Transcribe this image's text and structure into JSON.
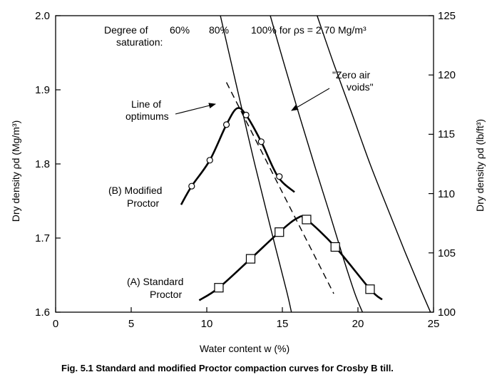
{
  "chart_data": {
    "type": "line",
    "title": "",
    "xlabel": "Water content w (%)",
    "ylabel": "Dry density ρd (Mg/m³)",
    "ylabel_right": "Dry density ρd (lb/ft³)",
    "xlim": [
      0,
      25
    ],
    "ylim": [
      1.6,
      2.0
    ],
    "ylim_right": [
      100,
      125
    ],
    "x_ticks": [
      "0",
      "5",
      "10",
      "15",
      "20",
      "25"
    ],
    "y_ticks": [
      "1.6",
      "1.7",
      "1.8",
      "1.9",
      "2.0"
    ],
    "y_right_ticks": [
      "100",
      "105",
      "110",
      "115",
      "120",
      "125"
    ],
    "grid": false,
    "series": [
      {
        "name": "(B) Modified Proctor",
        "marker": "circle",
        "curve": [
          [
            8.3,
            1.745
          ],
          [
            9.0,
            1.77
          ],
          [
            10.2,
            1.805
          ],
          [
            11.3,
            1.853
          ],
          [
            12.0,
            1.875
          ],
          [
            12.6,
            1.866
          ],
          [
            13.6,
            1.83
          ],
          [
            14.7,
            1.783
          ],
          [
            15.8,
            1.762
          ]
        ],
        "points": [
          [
            9.0,
            1.77
          ],
          [
            10.2,
            1.805
          ],
          [
            11.3,
            1.853
          ],
          [
            12.6,
            1.866
          ],
          [
            13.6,
            1.83
          ],
          [
            14.8,
            1.783
          ]
        ]
      },
      {
        "name": "(A) Standard Proctor",
        "marker": "square",
        "curve": [
          [
            9.5,
            1.616
          ],
          [
            10.8,
            1.633
          ],
          [
            12.9,
            1.672
          ],
          [
            14.8,
            1.708
          ],
          [
            16.0,
            1.727
          ],
          [
            16.6,
            1.725
          ],
          [
            18.5,
            1.688
          ],
          [
            20.8,
            1.631
          ],
          [
            21.6,
            1.617
          ]
        ],
        "points": [
          [
            10.8,
            1.633
          ],
          [
            12.9,
            1.672
          ],
          [
            14.8,
            1.708
          ],
          [
            16.6,
            1.725
          ],
          [
            18.5,
            1.688
          ],
          [
            20.8,
            1.631
          ]
        ]
      },
      {
        "name": "60%",
        "style": "saturation",
        "curve": [
          [
            10.9,
            2.0
          ],
          [
            11.6,
            1.938
          ],
          [
            12.3,
            1.876
          ],
          [
            13.1,
            1.806
          ],
          [
            13.9,
            1.74
          ],
          [
            14.6,
            1.683
          ],
          [
            15.3,
            1.627
          ],
          [
            15.6,
            1.6
          ]
        ]
      },
      {
        "name": "80%",
        "style": "saturation",
        "curve": [
          [
            14.2,
            2.0
          ],
          [
            15.1,
            1.936
          ],
          [
            16.1,
            1.867
          ],
          [
            17.1,
            1.8
          ],
          [
            18.1,
            1.735
          ],
          [
            19.0,
            1.675
          ],
          [
            19.8,
            1.625
          ],
          [
            20.3,
            1.6
          ]
        ]
      },
      {
        "name": "100% for ρs = 2.70 Mg/m³",
        "style": "saturation",
        "curve": [
          [
            17.3,
            2.0
          ],
          [
            18.4,
            1.935
          ],
          [
            19.6,
            1.868
          ],
          [
            20.8,
            1.8
          ],
          [
            22.0,
            1.738
          ],
          [
            23.1,
            1.682
          ],
          [
            24.1,
            1.633
          ],
          [
            24.8,
            1.6
          ]
        ]
      },
      {
        "name": "Line of optimums",
        "style": "dashed",
        "curve": [
          [
            11.3,
            1.91
          ],
          [
            18.4,
            1.625
          ]
        ]
      }
    ],
    "annotations": {
      "saturation_label_1": "Degree of",
      "saturation_label_2": "saturation:",
      "label_60": "60%",
      "label_80": "80%",
      "label_100": "100% for ρs = 2.70 Mg/m³",
      "zero_air_1": "\"Zero air",
      "zero_air_2": "voids\"",
      "optimums_1": "Line of",
      "optimums_2": "optimums",
      "modified_1": "(B) Modified",
      "modified_2": "Proctor",
      "standard_1": "(A) Standard",
      "standard_2": "Proctor"
    }
  },
  "caption": "Fig. 5.1 Standard and modified Proctor compaction curves for Crosby B till."
}
